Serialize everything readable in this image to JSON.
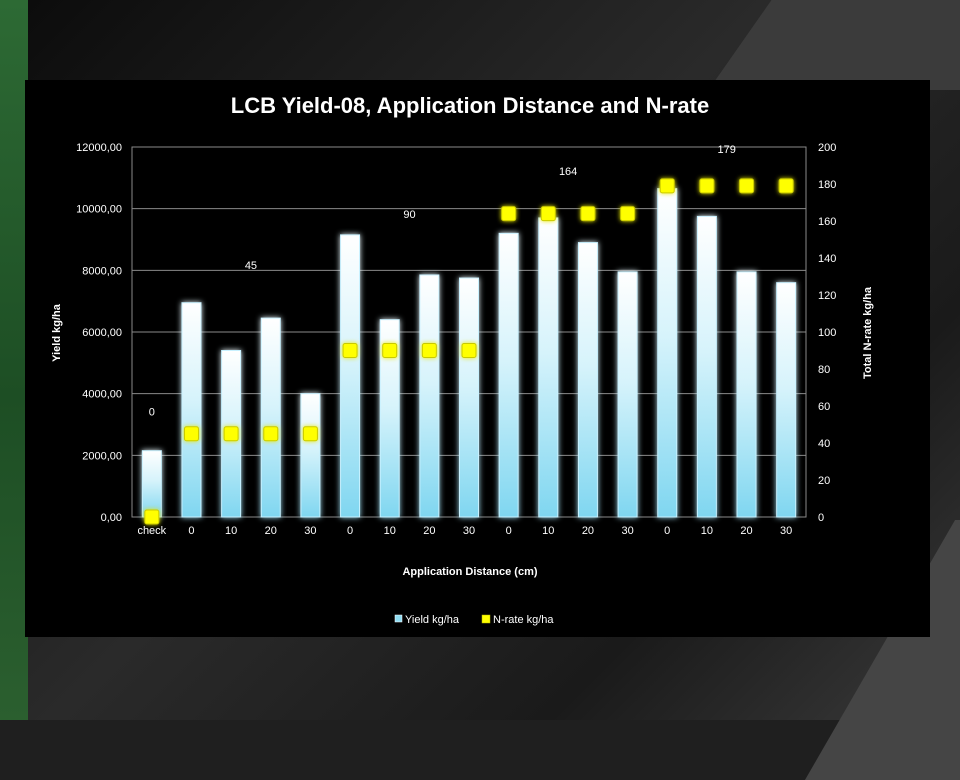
{
  "chart_data": {
    "type": "bar",
    "title": "LCB Yield-08, Application Distance and N-rate",
    "xlabel": "Application Distance (cm)",
    "ylabel": "Yield kg/ha",
    "y2label": "Total N-rate kg/ha",
    "categories": [
      "check",
      "0",
      "10",
      "20",
      "30",
      "0",
      "10",
      "20",
      "30",
      "0",
      "10",
      "20",
      "30",
      "0",
      "10",
      "20",
      "30"
    ],
    "ylim": [
      0,
      12000
    ],
    "y_ticks": [
      "0,00",
      "2000,00",
      "4000,00",
      "6000,00",
      "8000,00",
      "10000,00",
      "12000,00"
    ],
    "y2lim": [
      0,
      200
    ],
    "y2_ticks": [
      "0",
      "20",
      "40",
      "60",
      "80",
      "100",
      "120",
      "140",
      "160",
      "180",
      "200"
    ],
    "grid": true,
    "legend_position": "bottom",
    "series": [
      {
        "name": "Yield kg/ha",
        "type": "bar",
        "axis": "left",
        "color": "#8fdcf2",
        "values": [
          2150,
          6950,
          5400,
          6450,
          4000,
          9150,
          6400,
          7850,
          7750,
          9200,
          9700,
          8900,
          7950,
          10650,
          9750,
          7950,
          7600
        ]
      },
      {
        "name": "N-rate kg/ha",
        "type": "scatter",
        "axis": "right",
        "color": "#ffff00",
        "values": [
          0,
          45,
          45,
          45,
          45,
          90,
          90,
          90,
          90,
          164,
          164,
          164,
          164,
          179,
          179,
          179,
          179
        ]
      }
    ],
    "annotations": [
      {
        "text": "0",
        "index": 0,
        "y_left": 3300
      },
      {
        "text": "45",
        "index": 2.5,
        "y_left": 8050
      },
      {
        "text": "90",
        "index": 6.5,
        "y_left": 9700
      },
      {
        "text": "164",
        "index": 10.5,
        "y_left": 11100
      },
      {
        "text": "179",
        "index": 14.5,
        "y_left": 11800
      }
    ]
  }
}
